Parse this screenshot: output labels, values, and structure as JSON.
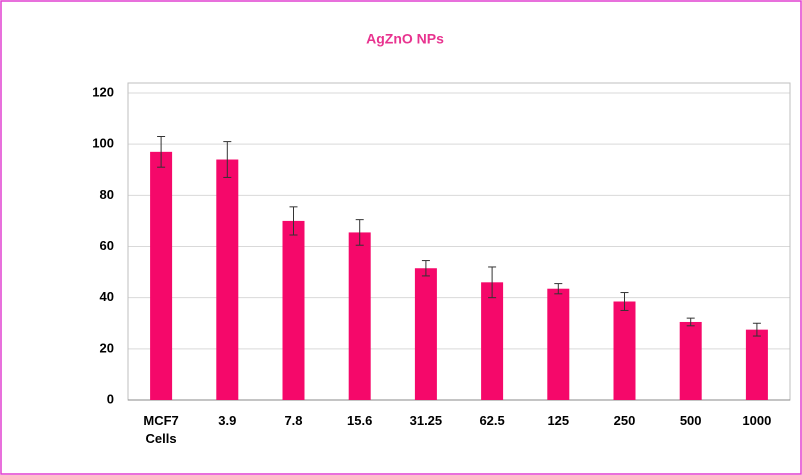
{
  "chart_data": {
    "type": "bar",
    "title": "AgZnO NPs",
    "categories": [
      "MCF7 Cells",
      "3.9",
      "7.8",
      "15.6",
      "31.25",
      "62.5",
      "125",
      "250",
      "500",
      "1000"
    ],
    "values": [
      97,
      94,
      70,
      65.5,
      51.5,
      46,
      43.5,
      38.5,
      30.5,
      27.5
    ],
    "errors": [
      6,
      7,
      5.5,
      5,
      3,
      6,
      2,
      3.5,
      1.5,
      2.5
    ],
    "color": "#f5086a",
    "ylim": [
      0,
      120
    ],
    "yticks": [
      0,
      20,
      40,
      60,
      80,
      100,
      120
    ],
    "grid": true
  }
}
